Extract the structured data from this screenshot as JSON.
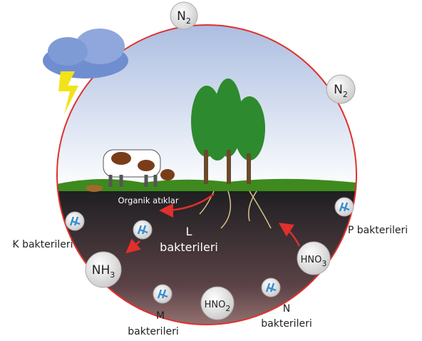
{
  "nodes": [
    {
      "label": "N",
      "sub": "2"
    },
    {
      "label": "N",
      "sub": "2"
    },
    {
      "label": "NH",
      "sub": "3"
    },
    {
      "label": "HNO",
      "sub": "2"
    },
    {
      "label": "HNO",
      "sub": "3"
    }
  ],
  "labels": {
    "organic": "Organik atıklar",
    "k": "K bakterileri",
    "l": [
      "L",
      "bakterileri"
    ],
    "m": [
      "M",
      "bakterileri"
    ],
    "n": [
      "N",
      "bakterileri"
    ],
    "p": "P bakterileri"
  }
}
